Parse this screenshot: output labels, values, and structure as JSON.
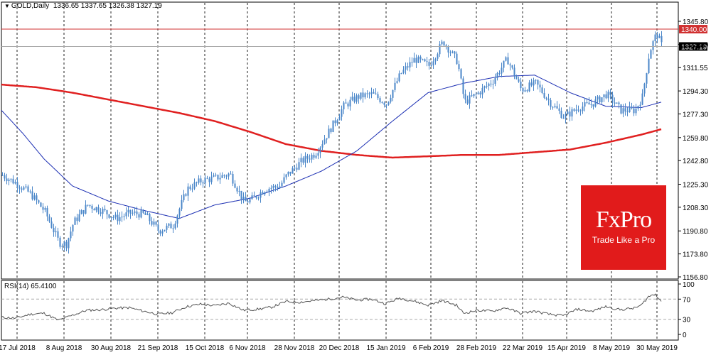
{
  "header": {
    "symbol": "GOLD,Daily",
    "open": "1336.65",
    "high": "1337.65",
    "low": "1326.38",
    "close": "1327.19"
  },
  "rsi_header": {
    "label": "RSI(14)",
    "value": "65.4100"
  },
  "logo": {
    "brand": "FxPro",
    "tagline": "Trade Like a Pro",
    "color": "#e11b1b"
  },
  "colors": {
    "candle": "#4a86c8",
    "ma_fast": "#1c2fb3",
    "ma_slow": "#e02020",
    "hline": "#d03030",
    "grid": "#222222",
    "rsi_line": "#555555"
  },
  "chart_data": [
    {
      "type": "candlestick",
      "title": "GOLD,Daily",
      "x_dates": [
        "17 Jul 2018",
        "8 Aug 2018",
        "30 Aug 2018",
        "21 Sep 2018",
        "15 Oct 2018",
        "6 Nov 2018",
        "28 Nov 2018",
        "20 Dec 2018",
        "15 Jan 2019",
        "6 Feb 2019",
        "28 Feb 2019",
        "22 Mar 2019",
        "15 Apr 2019",
        "8 May 2019",
        "30 May 2019"
      ],
      "y_ticks": [
        "1345.80",
        "1328.80",
        "1311.55",
        "1294.30",
        "1277.30",
        "1259.80",
        "1242.80",
        "1225.30",
        "1208.30",
        "1190.80",
        "1173.80",
        "1156.80"
      ],
      "ylim": [
        1156.8,
        1349.5
      ],
      "horizontal_line": {
        "value": 1340.0,
        "label": "1340.00"
      },
      "last_price": {
        "value": 1327.19,
        "label": "1327.19"
      },
      "price_anchors": [
        [
          0,
          1232
        ],
        [
          10,
          1229
        ],
        [
          20,
          1226
        ],
        [
          40,
          1218
        ],
        [
          60,
          1205
        ],
        [
          80,
          1182
        ],
        [
          90,
          1181
        ],
        [
          100,
          1197
        ],
        [
          120,
          1210
        ],
        [
          140,
          1206
        ],
        [
          160,
          1200
        ],
        [
          180,
          1204
        ],
        [
          200,
          1203
        ],
        [
          220,
          1191
        ],
        [
          240,
          1195
        ],
        [
          260,
          1222
        ],
        [
          280,
          1228
        ],
        [
          300,
          1230
        ],
        [
          320,
          1233
        ],
        [
          340,
          1212
        ],
        [
          350,
          1214
        ],
        [
          370,
          1222
        ],
        [
          390,
          1224
        ],
        [
          400,
          1232
        ],
        [
          420,
          1242
        ],
        [
          440,
          1248
        ],
        [
          460,
          1265
        ],
        [
          480,
          1283
        ],
        [
          500,
          1290
        ],
        [
          520,
          1292
        ],
        [
          540,
          1285
        ],
        [
          560,
          1307
        ],
        [
          580,
          1318
        ],
        [
          600,
          1313
        ],
        [
          620,
          1331
        ],
        [
          640,
          1316
        ],
        [
          650,
          1286
        ],
        [
          670,
          1293
        ],
        [
          690,
          1302
        ],
        [
          710,
          1318
        ],
        [
          730,
          1295
        ],
        [
          750,
          1300
        ],
        [
          770,
          1286
        ],
        [
          790,
          1275
        ],
        [
          810,
          1282
        ],
        [
          830,
          1285
        ],
        [
          850,
          1292
        ],
        [
          870,
          1280
        ],
        [
          890,
          1280
        ],
        [
          900,
          1290
        ],
        [
          910,
          1323
        ],
        [
          920,
          1337
        ],
        [
          928,
          1327
        ]
      ],
      "ma_slow_anchors": [
        [
          0,
          1299
        ],
        [
          50,
          1297
        ],
        [
          100,
          1293
        ],
        [
          150,
          1288
        ],
        [
          200,
          1283
        ],
        [
          250,
          1278
        ],
        [
          300,
          1272
        ],
        [
          350,
          1264
        ],
        [
          400,
          1255
        ],
        [
          450,
          1250
        ],
        [
          500,
          1247
        ],
        [
          550,
          1245
        ],
        [
          600,
          1246
        ],
        [
          650,
          1247
        ],
        [
          700,
          1247
        ],
        [
          750,
          1249
        ],
        [
          800,
          1251
        ],
        [
          850,
          1256
        ],
        [
          900,
          1262
        ],
        [
          928,
          1266
        ]
      ],
      "ma_fast_anchors": [
        [
          0,
          1280
        ],
        [
          30,
          1263
        ],
        [
          60,
          1244
        ],
        [
          100,
          1224
        ],
        [
          150,
          1213
        ],
        [
          200,
          1206
        ],
        [
          250,
          1200
        ],
        [
          300,
          1210
        ],
        [
          350,
          1215
        ],
        [
          400,
          1224
        ],
        [
          450,
          1235
        ],
        [
          500,
          1250
        ],
        [
          550,
          1272
        ],
        [
          600,
          1293
        ],
        [
          650,
          1300
        ],
        [
          700,
          1305
        ],
        [
          750,
          1306
        ],
        [
          800,
          1293
        ],
        [
          850,
          1283
        ],
        [
          900,
          1282
        ],
        [
          928,
          1286
        ]
      ]
    },
    {
      "type": "line",
      "title": "RSI(14) 65.4100",
      "y_ticks": [
        "100",
        "70",
        "30",
        "0"
      ],
      "ylim": [
        0,
        100
      ],
      "reference_levels": [
        70,
        30
      ],
      "rsi_anchors": [
        [
          0,
          34
        ],
        [
          20,
          32
        ],
        [
          40,
          40
        ],
        [
          60,
          42
        ],
        [
          80,
          28
        ],
        [
          100,
          38
        ],
        [
          120,
          48
        ],
        [
          140,
          49
        ],
        [
          160,
          52
        ],
        [
          180,
          53
        ],
        [
          200,
          46
        ],
        [
          220,
          40
        ],
        [
          240,
          43
        ],
        [
          260,
          55
        ],
        [
          280,
          60
        ],
        [
          300,
          57
        ],
        [
          320,
          62
        ],
        [
          340,
          48
        ],
        [
          360,
          50
        ],
        [
          380,
          54
        ],
        [
          400,
          65
        ],
        [
          420,
          64
        ],
        [
          440,
          67
        ],
        [
          460,
          70
        ],
        [
          480,
          74
        ],
        [
          500,
          68
        ],
        [
          520,
          70
        ],
        [
          540,
          61
        ],
        [
          560,
          72
        ],
        [
          580,
          66
        ],
        [
          600,
          58
        ],
        [
          620,
          67
        ],
        [
          640,
          58
        ],
        [
          650,
          42
        ],
        [
          670,
          48
        ],
        [
          690,
          46
        ],
        [
          710,
          53
        ],
        [
          730,
          42
        ],
        [
          750,
          46
        ],
        [
          770,
          40
        ],
        [
          790,
          37
        ],
        [
          810,
          50
        ],
        [
          830,
          46
        ],
        [
          850,
          55
        ],
        [
          870,
          49
        ],
        [
          890,
          52
        ],
        [
          900,
          58
        ],
        [
          910,
          75
        ],
        [
          920,
          80
        ],
        [
          928,
          66
        ]
      ]
    }
  ]
}
